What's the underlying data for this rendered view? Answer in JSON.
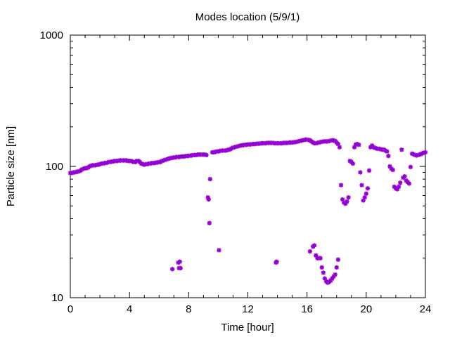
{
  "chart_data": {
    "type": "scatter",
    "title": "Modes location (5/9/1)",
    "xlabel": "Time [hour]",
    "ylabel": "Particle size [nm]",
    "xlim": [
      0,
      24
    ],
    "ylim": [
      10,
      1000
    ],
    "yscale": "log",
    "grid": false,
    "legend": "none",
    "marker_color": "#9400D3",
    "x_ticks": [
      {
        "value": 0,
        "label": "0"
      },
      {
        "value": 4,
        "label": "4"
      },
      {
        "value": 8,
        "label": "8"
      },
      {
        "value": 12,
        "label": "12"
      },
      {
        "value": 16,
        "label": "16"
      },
      {
        "value": 20,
        "label": "20"
      },
      {
        "value": 24,
        "label": "24"
      }
    ],
    "y_ticks": [
      {
        "value": 10,
        "label": "10"
      },
      {
        "value": 100,
        "label": "100"
      },
      {
        "value": 1000,
        "label": "1000"
      }
    ],
    "series": [
      {
        "points": [
          [
            0.0,
            89
          ],
          [
            0.1,
            89
          ],
          [
            0.2,
            90
          ],
          [
            0.3,
            90
          ],
          [
            0.4,
            91
          ],
          [
            0.5,
            91
          ],
          [
            0.6,
            92
          ],
          [
            0.7,
            93
          ],
          [
            0.8,
            95
          ],
          [
            0.9,
            96
          ],
          [
            1.0,
            97
          ],
          [
            1.1,
            97
          ],
          [
            1.2,
            98
          ],
          [
            1.3,
            100
          ],
          [
            1.4,
            101
          ],
          [
            1.5,
            102
          ],
          [
            1.6,
            102
          ],
          [
            1.7,
            102
          ],
          [
            1.8,
            103
          ],
          [
            1.9,
            103
          ],
          [
            2.0,
            104
          ],
          [
            2.1,
            105
          ],
          [
            2.2,
            105
          ],
          [
            2.3,
            106
          ],
          [
            2.4,
            106
          ],
          [
            2.5,
            107
          ],
          [
            2.6,
            108
          ],
          [
            2.7,
            108
          ],
          [
            2.8,
            109
          ],
          [
            2.9,
            109
          ],
          [
            3.0,
            110
          ],
          [
            3.1,
            110
          ],
          [
            3.2,
            110
          ],
          [
            3.3,
            111
          ],
          [
            3.4,
            111
          ],
          [
            3.5,
            111
          ],
          [
            3.6,
            111
          ],
          [
            3.7,
            111
          ],
          [
            3.8,
            111
          ],
          [
            3.9,
            110
          ],
          [
            4.0,
            110
          ],
          [
            4.1,
            110
          ],
          [
            4.2,
            109
          ],
          [
            4.3,
            108
          ],
          [
            4.4,
            108
          ],
          [
            4.5,
            110
          ],
          [
            4.6,
            110
          ],
          [
            4.7,
            108
          ],
          [
            4.8,
            105
          ],
          [
            4.9,
            104
          ],
          [
            5.0,
            103
          ],
          [
            5.1,
            104
          ],
          [
            5.2,
            104
          ],
          [
            5.3,
            105
          ],
          [
            5.4,
            105
          ],
          [
            5.5,
            106
          ],
          [
            5.6,
            106
          ],
          [
            5.7,
            106
          ],
          [
            5.8,
            107
          ],
          [
            5.9,
            107
          ],
          [
            6.0,
            108
          ],
          [
            6.1,
            108
          ],
          [
            6.2,
            110
          ],
          [
            6.3,
            111
          ],
          [
            6.4,
            112
          ],
          [
            6.5,
            113
          ],
          [
            6.6,
            114
          ],
          [
            6.7,
            115
          ],
          [
            6.8,
            116
          ],
          [
            6.9,
            116
          ],
          [
            7.0,
            117
          ],
          [
            7.1,
            117
          ],
          [
            7.2,
            118
          ],
          [
            7.3,
            118
          ],
          [
            7.4,
            118
          ],
          [
            7.5,
            119
          ],
          [
            7.6,
            119
          ],
          [
            7.7,
            119
          ],
          [
            7.8,
            120
          ],
          [
            7.9,
            120
          ],
          [
            8.0,
            120
          ],
          [
            8.1,
            121
          ],
          [
            8.2,
            121
          ],
          [
            8.3,
            122
          ],
          [
            8.4,
            122
          ],
          [
            8.5,
            122
          ],
          [
            8.6,
            123
          ],
          [
            8.7,
            123
          ],
          [
            8.8,
            123
          ],
          [
            8.9,
            123
          ],
          [
            9.0,
            123
          ],
          [
            9.1,
            123
          ],
          [
            9.2,
            122
          ],
          [
            9.6,
            128
          ],
          [
            9.7,
            128
          ],
          [
            9.8,
            129
          ],
          [
            9.9,
            130
          ],
          [
            10.0,
            130
          ],
          [
            10.1,
            131
          ],
          [
            10.2,
            132
          ],
          [
            10.3,
            132
          ],
          [
            10.4,
            132
          ],
          [
            10.5,
            132
          ],
          [
            10.6,
            133
          ],
          [
            10.7,
            134
          ],
          [
            10.8,
            135
          ],
          [
            10.9,
            137
          ],
          [
            11.0,
            139
          ],
          [
            11.1,
            140
          ],
          [
            11.2,
            141
          ],
          [
            11.3,
            142
          ],
          [
            11.4,
            143
          ],
          [
            11.5,
            144
          ],
          [
            11.6,
            145
          ],
          [
            11.7,
            145
          ],
          [
            11.8,
            146
          ],
          [
            11.9,
            146
          ],
          [
            12.0,
            147
          ],
          [
            12.1,
            147
          ],
          [
            12.2,
            147
          ],
          [
            12.3,
            148
          ],
          [
            12.4,
            148
          ],
          [
            12.5,
            148
          ],
          [
            12.6,
            149
          ],
          [
            12.7,
            149
          ],
          [
            12.8,
            149
          ],
          [
            12.9,
            150
          ],
          [
            13.0,
            150
          ],
          [
            13.1,
            150
          ],
          [
            13.2,
            150
          ],
          [
            13.3,
            151
          ],
          [
            13.4,
            151
          ],
          [
            13.5,
            151
          ],
          [
            13.6,
            151
          ],
          [
            13.7,
            151
          ],
          [
            13.8,
            150
          ],
          [
            13.9,
            150
          ],
          [
            14.0,
            150
          ],
          [
            14.1,
            150
          ],
          [
            14.2,
            150
          ],
          [
            14.3,
            150
          ],
          [
            14.4,
            151
          ],
          [
            14.5,
            151
          ],
          [
            14.6,
            151
          ],
          [
            14.7,
            151
          ],
          [
            14.8,
            152
          ],
          [
            14.9,
            152
          ],
          [
            15.0,
            152
          ],
          [
            15.1,
            153
          ],
          [
            15.2,
            153
          ],
          [
            15.3,
            154
          ],
          [
            15.4,
            155
          ],
          [
            15.5,
            156
          ],
          [
            15.6,
            157
          ],
          [
            15.7,
            158
          ],
          [
            15.8,
            159
          ],
          [
            15.9,
            160
          ],
          [
            16.0,
            160
          ],
          [
            16.1,
            159
          ],
          [
            16.2,
            158
          ],
          [
            16.3,
            155
          ],
          [
            16.4,
            152
          ],
          [
            16.5,
            150
          ],
          [
            16.6,
            150
          ],
          [
            16.7,
            151
          ],
          [
            16.8,
            152
          ],
          [
            16.9,
            153
          ],
          [
            17.0,
            154
          ],
          [
            17.1,
            155
          ],
          [
            17.2,
            155
          ],
          [
            17.3,
            155
          ],
          [
            17.4,
            155
          ],
          [
            17.5,
            156
          ],
          [
            17.6,
            157
          ],
          [
            17.7,
            158
          ],
          [
            17.8,
            158
          ],
          [
            17.9,
            156
          ],
          [
            18.0,
            152
          ],
          [
            18.1,
            148
          ],
          [
            18.2,
            140
          ],
          [
            18.3,
            72
          ],
          [
            18.4,
            56
          ],
          [
            18.5,
            53
          ],
          [
            18.6,
            52
          ],
          [
            18.7,
            54
          ],
          [
            18.8,
            58
          ],
          [
            18.9,
            110
          ],
          [
            19.0,
            108
          ],
          [
            19.1,
            105
          ],
          [
            19.2,
            140
          ],
          [
            19.3,
            147
          ],
          [
            19.4,
            148
          ],
          [
            19.5,
            146
          ],
          [
            19.6,
            90
          ],
          [
            19.7,
            72
          ],
          [
            19.8,
            55
          ],
          [
            19.9,
            58
          ],
          [
            20.0,
            62
          ],
          [
            20.1,
            68
          ],
          [
            20.2,
            93
          ],
          [
            20.3,
            140
          ],
          [
            20.4,
            144
          ],
          [
            20.5,
            140
          ],
          [
            20.6,
            138
          ],
          [
            20.7,
            137
          ],
          [
            20.8,
            136
          ],
          [
            20.9,
            136
          ],
          [
            21.0,
            135
          ],
          [
            21.1,
            134
          ],
          [
            21.2,
            134
          ],
          [
            21.3,
            132
          ],
          [
            21.4,
            130
          ],
          [
            21.5,
            120
          ],
          [
            21.6,
            100
          ],
          [
            21.7,
            96
          ],
          [
            21.8,
            94
          ],
          [
            21.9,
            70
          ],
          [
            22.0,
            68
          ],
          [
            22.1,
            67
          ],
          [
            22.2,
            70
          ],
          [
            22.3,
            75
          ],
          [
            22.4,
            134
          ],
          [
            22.5,
            82
          ],
          [
            22.6,
            84
          ],
          [
            22.7,
            78
          ],
          [
            22.8,
            76
          ],
          [
            22.9,
            74
          ],
          [
            23.0,
            99
          ],
          [
            23.1,
            125
          ],
          [
            23.2,
            124
          ],
          [
            23.3,
            122
          ],
          [
            23.4,
            121
          ],
          [
            23.5,
            122
          ],
          [
            23.6,
            123
          ],
          [
            23.7,
            124
          ],
          [
            23.8,
            126
          ],
          [
            23.9,
            127
          ],
          [
            24.0,
            128
          ],
          [
            6.9,
            16.5
          ],
          [
            7.3,
            18.5
          ],
          [
            7.4,
            18.8
          ],
          [
            7.35,
            16.8
          ],
          [
            7.45,
            16.8
          ],
          [
            9.3,
            58
          ],
          [
            9.35,
            56
          ],
          [
            9.45,
            80
          ],
          [
            9.4,
            37
          ],
          [
            10.05,
            23
          ],
          [
            13.9,
            18.5
          ],
          [
            13.95,
            18.8
          ],
          [
            16.2,
            22.5
          ],
          [
            16.4,
            24.5
          ],
          [
            16.5,
            25
          ],
          [
            16.6,
            21
          ],
          [
            16.7,
            20
          ],
          [
            16.8,
            20
          ],
          [
            16.9,
            20
          ],
          [
            17.0,
            17
          ],
          [
            17.1,
            15.5
          ],
          [
            17.2,
            14
          ],
          [
            17.3,
            13.3
          ],
          [
            17.4,
            13
          ],
          [
            17.5,
            13.2
          ],
          [
            17.6,
            13.5
          ],
          [
            17.7,
            14
          ],
          [
            17.8,
            14.5
          ],
          [
            17.9,
            15
          ],
          [
            18.0,
            17
          ],
          [
            18.1,
            19.5
          ]
        ]
      }
    ]
  }
}
